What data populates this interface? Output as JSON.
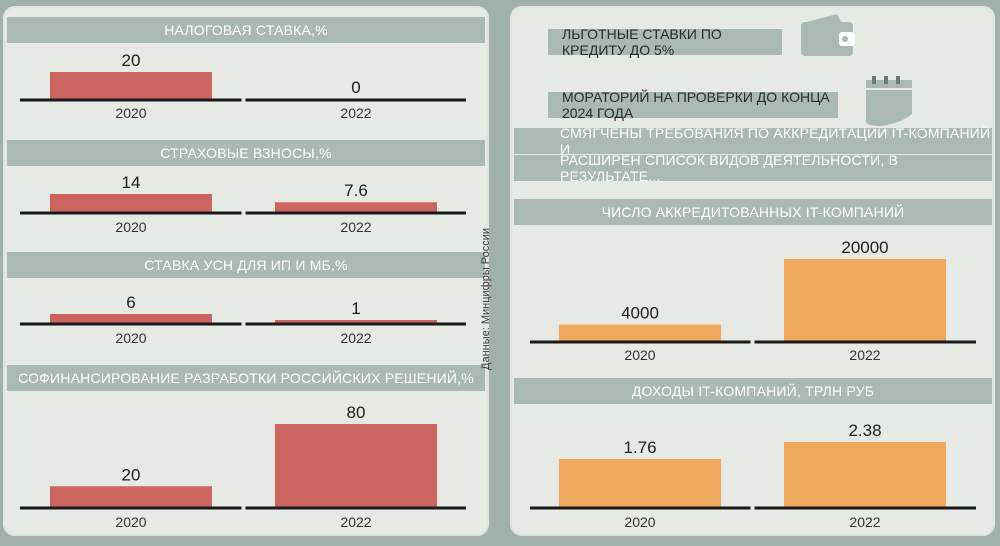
{
  "credit": "Данные: Минцифры России",
  "right_info": {
    "item1": "ЛЬГОТНЫЕ СТАВКИ ПО КРЕДИТУ ДО 5%",
    "item2": "МОРАТОРИЙ НА ПРОВЕРКИ ДО КОНЦА 2024 ГОДА",
    "line1": "СМЯГЧЕНЫ ТРЕБОВАНИЯ ПО АККРЕДИТАЦИИ IT-КОМПАНИЙ И",
    "line2": "РАСШИРЕН СПИСОК ВИДОВ ДЕЯТЕЛЬНОСТИ, В РЕЗУЛЬТАТЕ...",
    "icons": [
      "wallet-icon",
      "calendar-icon"
    ]
  },
  "colors": {
    "left_bar": "#cc6560",
    "right_bar": "#f0a95c",
    "band": "#a9b9b3",
    "panel": "#e7e9e5"
  },
  "chart_data": [
    {
      "type": "bar",
      "title": "НАЛОГОВАЯ СТАВКА,%",
      "categories": [
        "2020",
        "2022"
      ],
      "values": [
        20,
        0
      ],
      "value_labels": [
        "20",
        "0"
      ]
    },
    {
      "type": "bar",
      "title": "СТРАХОВЫЕ ВЗНОСЫ,%",
      "categories": [
        "2020",
        "2022"
      ],
      "values": [
        14,
        7.6
      ],
      "value_labels": [
        "14",
        "7.6"
      ]
    },
    {
      "type": "bar",
      "title": "СТАВКА УСН ДЛЯ ИП И МБ,%",
      "categories": [
        "2020",
        "2022"
      ],
      "values": [
        6,
        1
      ],
      "value_labels": [
        "6",
        "1"
      ]
    },
    {
      "type": "bar",
      "title": "СОФИНАНСИРОВАНИЕ РАЗРАБОТКИ РОССИЙСКИХ РЕШЕНИЙ,%",
      "categories": [
        "2020",
        "2022"
      ],
      "values": [
        20,
        80
      ],
      "value_labels": [
        "20",
        "80"
      ]
    },
    {
      "type": "bar",
      "title": "ЧИСЛО АККРЕДИТОВАННЫХ IT-КОМПАНИЙ",
      "categories": [
        "2020",
        "2022"
      ],
      "values": [
        4000,
        20000
      ],
      "value_labels": [
        "4000",
        "20000"
      ]
    },
    {
      "type": "bar",
      "title": "ДОХОДЫ IT-КОМПАНИЙ, ТРЛН РУБ",
      "categories": [
        "2020",
        "2022"
      ],
      "values": [
        1.76,
        2.38
      ],
      "value_labels": [
        "1.76",
        "2.38"
      ]
    }
  ]
}
